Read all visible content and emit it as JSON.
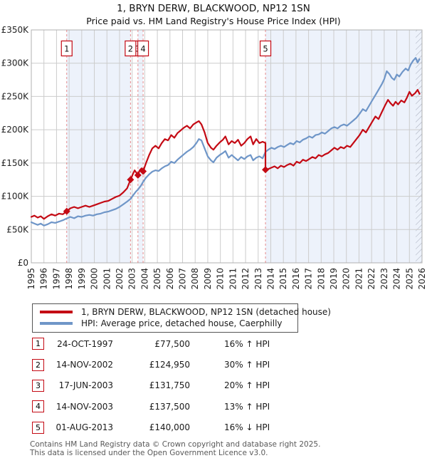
{
  "title": {
    "line1": "1, BRYN DERW, BLACKWOOD, NP12 1SN",
    "line2": "Price paid vs. HM Land Registry's House Price Index (HPI)"
  },
  "colors": {
    "price_line": "#c40a14",
    "hpi_line": "#6f96c8",
    "sale_dash": "#e06666",
    "band_fill": "#edf2fb",
    "gridline": "#cccccc",
    "plot_border": "#b0b0b0",
    "hatch_stroke": "#a8aebc",
    "badge_border": "#c40a14",
    "footer_text": "#595959"
  },
  "chart_data": {
    "type": "line",
    "title": "Price paid vs. HM Land Registry's House Price Index (HPI)",
    "xlabel": "",
    "ylabel": "",
    "unit": "GBP thousands",
    "x_axis": {
      "range": [
        1995,
        2026
      ],
      "tick_years": [
        1995,
        1996,
        1997,
        1998,
        1999,
        2000,
        2001,
        2002,
        2003,
        2004,
        2005,
        2006,
        2007,
        2008,
        2009,
        2010,
        2011,
        2012,
        2013,
        2014,
        2015,
        2016,
        2017,
        2018,
        2019,
        2020,
        2021,
        2022,
        2023,
        2024,
        2025,
        2026
      ]
    },
    "y_axis": {
      "range": [
        0,
        350
      ],
      "tick_values": [
        0,
        50,
        100,
        150,
        200,
        250,
        300,
        350
      ],
      "tick_labels": [
        "£0",
        "£50K",
        "£100K",
        "£150K",
        "£200K",
        "£250K",
        "£300K",
        "£350K"
      ]
    },
    "grid": true,
    "legend_position": "below",
    "shaded_periods": [
      [
        1997.81,
        2002.87
      ],
      [
        2003.46,
        2003.87
      ],
      [
        2013.58,
        2026
      ]
    ],
    "hatch_from": 2025.5,
    "sales": [
      {
        "num": "1",
        "year": 1997.81,
        "price_k": 77.5
      },
      {
        "num": "2",
        "year": 2002.87,
        "price_k": 124.95
      },
      {
        "num": "3",
        "year": 2003.46,
        "price_k": 131.75
      },
      {
        "num": "4",
        "year": 2003.87,
        "price_k": 137.5
      },
      {
        "num": "5",
        "year": 2013.58,
        "price_k": 140
      }
    ],
    "badge_draw_order": [
      2,
      1,
      3,
      0,
      4
    ],
    "series": [
      {
        "name": "1, BRYN DERW, BLACKWOOD, NP12 1SN (detached house)",
        "color": "#c40a14",
        "points": [
          [
            1995.0,
            69
          ],
          [
            1995.25,
            71
          ],
          [
            1995.5,
            68
          ],
          [
            1995.75,
            70
          ],
          [
            1996.0,
            66
          ],
          [
            1996.3,
            70
          ],
          [
            1996.6,
            73
          ],
          [
            1996.9,
            71
          ],
          [
            1997.2,
            74
          ],
          [
            1997.5,
            73
          ],
          [
            1997.81,
            77.5
          ],
          [
            1998.1,
            82
          ],
          [
            1998.4,
            84
          ],
          [
            1998.7,
            82
          ],
          [
            1999.0,
            84
          ],
          [
            1999.3,
            86
          ],
          [
            1999.6,
            84
          ],
          [
            1999.9,
            86
          ],
          [
            2000.2,
            88
          ],
          [
            2000.5,
            90
          ],
          [
            2000.8,
            92
          ],
          [
            2001.1,
            93
          ],
          [
            2001.4,
            96
          ],
          [
            2001.7,
            99
          ],
          [
            2002.0,
            101
          ],
          [
            2002.3,
            106
          ],
          [
            2002.6,
            112
          ],
          [
            2002.87,
            124.95
          ],
          [
            2003.05,
            133
          ],
          [
            2003.2,
            139
          ],
          [
            2003.35,
            135
          ],
          [
            2003.46,
            131.75
          ],
          [
            2003.6,
            139
          ],
          [
            2003.75,
            142
          ],
          [
            2003.87,
            137.5
          ],
          [
            2004.1,
            150
          ],
          [
            2004.35,
            162
          ],
          [
            2004.6,
            172
          ],
          [
            2004.85,
            176
          ],
          [
            2005.1,
            172
          ],
          [
            2005.35,
            180
          ],
          [
            2005.6,
            186
          ],
          [
            2005.85,
            184
          ],
          [
            2006.1,
            192
          ],
          [
            2006.35,
            188
          ],
          [
            2006.6,
            195
          ],
          [
            2006.85,
            199
          ],
          [
            2007.1,
            203
          ],
          [
            2007.35,
            206
          ],
          [
            2007.6,
            202
          ],
          [
            2007.85,
            208
          ],
          [
            2008.1,
            211
          ],
          [
            2008.3,
            213
          ],
          [
            2008.5,
            208
          ],
          [
            2008.75,
            196
          ],
          [
            2009.0,
            180
          ],
          [
            2009.25,
            173
          ],
          [
            2009.45,
            170
          ],
          [
            2009.7,
            176
          ],
          [
            2009.95,
            181
          ],
          [
            2010.2,
            185
          ],
          [
            2010.4,
            190
          ],
          [
            2010.65,
            178
          ],
          [
            2010.9,
            183
          ],
          [
            2011.15,
            180
          ],
          [
            2011.4,
            185
          ],
          [
            2011.65,
            176
          ],
          [
            2011.9,
            180
          ],
          [
            2012.15,
            186
          ],
          [
            2012.4,
            190
          ],
          [
            2012.6,
            178
          ],
          [
            2012.85,
            186
          ],
          [
            2013.1,
            180
          ],
          [
            2013.35,
            182
          ],
          [
            2013.58,
            180
          ],
          [
            2013.58,
            140
          ],
          [
            2013.8,
            141
          ],
          [
            2014.05,
            143
          ],
          [
            2014.3,
            145
          ],
          [
            2014.55,
            142
          ],
          [
            2014.8,
            146
          ],
          [
            2015.05,
            144
          ],
          [
            2015.3,
            147
          ],
          [
            2015.55,
            149
          ],
          [
            2015.8,
            146
          ],
          [
            2016.05,
            152
          ],
          [
            2016.3,
            150
          ],
          [
            2016.55,
            155
          ],
          [
            2016.8,
            153
          ],
          [
            2017.05,
            156
          ],
          [
            2017.3,
            159
          ],
          [
            2017.55,
            157
          ],
          [
            2017.8,
            162
          ],
          [
            2018.05,
            160
          ],
          [
            2018.3,
            163
          ],
          [
            2018.55,
            165
          ],
          [
            2018.8,
            169
          ],
          [
            2019.05,
            173
          ],
          [
            2019.3,
            170
          ],
          [
            2019.55,
            174
          ],
          [
            2019.8,
            172
          ],
          [
            2020.05,
            176
          ],
          [
            2020.3,
            174
          ],
          [
            2020.55,
            180
          ],
          [
            2020.8,
            186
          ],
          [
            2021.05,
            192
          ],
          [
            2021.3,
            200
          ],
          [
            2021.55,
            196
          ],
          [
            2021.8,
            204
          ],
          [
            2022.05,
            212
          ],
          [
            2022.3,
            220
          ],
          [
            2022.55,
            216
          ],
          [
            2022.8,
            226
          ],
          [
            2023.05,
            236
          ],
          [
            2023.3,
            245
          ],
          [
            2023.5,
            240
          ],
          [
            2023.7,
            236
          ],
          [
            2023.9,
            242
          ],
          [
            2024.1,
            238
          ],
          [
            2024.35,
            244
          ],
          [
            2024.6,
            241
          ],
          [
            2024.8,
            248
          ],
          [
            2025.0,
            257
          ],
          [
            2025.2,
            251
          ],
          [
            2025.45,
            255
          ],
          [
            2025.65,
            260
          ],
          [
            2025.8,
            254
          ]
        ]
      },
      {
        "name": "HPI: Average price, detached house, Caerphilly",
        "color": "#6f96c8",
        "points": [
          [
            1995.0,
            61
          ],
          [
            1995.25,
            59
          ],
          [
            1995.5,
            57
          ],
          [
            1995.75,
            59
          ],
          [
            1996.0,
            56
          ],
          [
            1996.3,
            58
          ],
          [
            1996.6,
            61
          ],
          [
            1996.9,
            60
          ],
          [
            1997.2,
            62
          ],
          [
            1997.5,
            64
          ],
          [
            1997.81,
            66.8
          ],
          [
            1998.1,
            69
          ],
          [
            1998.4,
            67
          ],
          [
            1998.7,
            70
          ],
          [
            1999.0,
            69
          ],
          [
            1999.3,
            71
          ],
          [
            1999.6,
            72
          ],
          [
            1999.9,
            71
          ],
          [
            2000.2,
            73
          ],
          [
            2000.5,
            74
          ],
          [
            2000.8,
            76
          ],
          [
            2001.1,
            77
          ],
          [
            2001.4,
            79
          ],
          [
            2001.7,
            81
          ],
          [
            2002.0,
            84
          ],
          [
            2002.3,
            88
          ],
          [
            2002.6,
            92
          ],
          [
            2002.87,
            96
          ],
          [
            2003.1,
            102
          ],
          [
            2003.3,
            107
          ],
          [
            2003.46,
            110
          ],
          [
            2003.7,
            116
          ],
          [
            2003.87,
            121.7
          ],
          [
            2004.1,
            128
          ],
          [
            2004.35,
            133
          ],
          [
            2004.6,
            137
          ],
          [
            2004.85,
            139
          ],
          [
            2005.1,
            138
          ],
          [
            2005.35,
            142
          ],
          [
            2005.6,
            145
          ],
          [
            2005.85,
            147
          ],
          [
            2006.1,
            152
          ],
          [
            2006.35,
            150
          ],
          [
            2006.6,
            155
          ],
          [
            2006.85,
            159
          ],
          [
            2007.1,
            163
          ],
          [
            2007.35,
            167
          ],
          [
            2007.6,
            170
          ],
          [
            2007.85,
            174
          ],
          [
            2008.1,
            180
          ],
          [
            2008.3,
            186
          ],
          [
            2008.5,
            184
          ],
          [
            2008.75,
            172
          ],
          [
            2009.0,
            160
          ],
          [
            2009.25,
            154
          ],
          [
            2009.45,
            151
          ],
          [
            2009.7,
            158
          ],
          [
            2009.95,
            162
          ],
          [
            2010.2,
            165
          ],
          [
            2010.4,
            168
          ],
          [
            2010.65,
            158
          ],
          [
            2010.9,
            162
          ],
          [
            2011.15,
            158
          ],
          [
            2011.4,
            154
          ],
          [
            2011.65,
            159
          ],
          [
            2011.9,
            156
          ],
          [
            2012.15,
            160
          ],
          [
            2012.4,
            162
          ],
          [
            2012.6,
            154
          ],
          [
            2012.85,
            158
          ],
          [
            2013.1,
            160
          ],
          [
            2013.35,
            157
          ],
          [
            2013.58,
            166.7
          ],
          [
            2013.8,
            170
          ],
          [
            2014.05,
            173
          ],
          [
            2014.3,
            171
          ],
          [
            2014.55,
            174
          ],
          [
            2014.8,
            176
          ],
          [
            2015.05,
            174
          ],
          [
            2015.3,
            177
          ],
          [
            2015.55,
            180
          ],
          [
            2015.8,
            178
          ],
          [
            2016.05,
            183
          ],
          [
            2016.3,
            181
          ],
          [
            2016.55,
            185
          ],
          [
            2016.8,
            187
          ],
          [
            2017.05,
            190
          ],
          [
            2017.3,
            188
          ],
          [
            2017.55,
            192
          ],
          [
            2017.8,
            193
          ],
          [
            2018.05,
            196
          ],
          [
            2018.3,
            194
          ],
          [
            2018.55,
            198
          ],
          [
            2018.8,
            202
          ],
          [
            2019.05,
            204
          ],
          [
            2019.3,
            202
          ],
          [
            2019.55,
            206
          ],
          [
            2019.8,
            208
          ],
          [
            2020.05,
            206
          ],
          [
            2020.3,
            210
          ],
          [
            2020.55,
            214
          ],
          [
            2020.8,
            218
          ],
          [
            2021.05,
            224
          ],
          [
            2021.3,
            231
          ],
          [
            2021.55,
            228
          ],
          [
            2021.8,
            236
          ],
          [
            2022.05,
            244
          ],
          [
            2022.3,
            252
          ],
          [
            2022.55,
            260
          ],
          [
            2022.8,
            268
          ],
          [
            2023.0,
            276
          ],
          [
            2023.2,
            288
          ],
          [
            2023.4,
            284
          ],
          [
            2023.6,
            278
          ],
          [
            2023.8,
            275
          ],
          [
            2024.0,
            283
          ],
          [
            2024.2,
            280
          ],
          [
            2024.45,
            287
          ],
          [
            2024.7,
            292
          ],
          [
            2024.9,
            289
          ],
          [
            2025.1,
            298
          ],
          [
            2025.3,
            304
          ],
          [
            2025.5,
            308
          ],
          [
            2025.65,
            301
          ],
          [
            2025.8,
            306
          ]
        ]
      }
    ]
  },
  "legend": {
    "items": [
      {
        "label": "1, BRYN DERW, BLACKWOOD, NP12 1SN (detached house)",
        "color": "#c40a14"
      },
      {
        "label": "HPI: Average price, detached house, Caerphilly",
        "color": "#6f96c8"
      }
    ]
  },
  "transactions": [
    {
      "num": "1",
      "date": "24-OCT-1997",
      "price": "£77,500",
      "hpi": "16% ↑ HPI"
    },
    {
      "num": "2",
      "date": "14-NOV-2002",
      "price": "£124,950",
      "hpi": "30% ↑ HPI"
    },
    {
      "num": "3",
      "date": "17-JUN-2003",
      "price": "£131,750",
      "hpi": "20% ↑ HPI"
    },
    {
      "num": "4",
      "date": "14-NOV-2003",
      "price": "£137,500",
      "hpi": "13% ↑ HPI"
    },
    {
      "num": "5",
      "date": "01-AUG-2013",
      "price": "£140,000",
      "hpi": "16% ↓ HPI"
    }
  ],
  "footer": {
    "line1": "Contains HM Land Registry data © Crown copyright and database right 2025.",
    "line2": "This data is licensed under the Open Government Licence v3.0."
  }
}
